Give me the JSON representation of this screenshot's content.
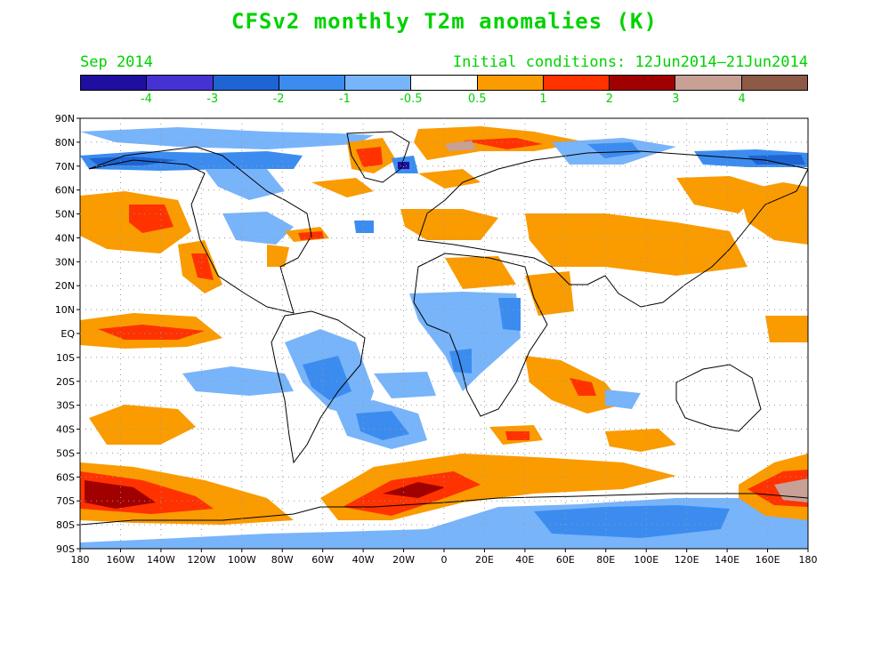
{
  "header": {
    "title": "CFSv2 monthly T2m anomalies (K)",
    "valid_month": "Sep 2014",
    "initial_conditions": "Initial conditions: 12Jun2014–21Jun2014"
  },
  "legend": {
    "colors": [
      "#1e0fa0",
      "#4632d2",
      "#1e64d2",
      "#3c8cf0",
      "#78b4fa",
      "#ffffff",
      "#fa9b00",
      "#ff3200",
      "#a00000",
      "#c8a096",
      "#8c5a46"
    ],
    "labels": [
      "-4",
      "-3",
      "-2",
      "-1",
      "-0.5",
      "0.5",
      "1",
      "2",
      "3",
      "4"
    ]
  },
  "map": {
    "lat_labels": [
      "90N",
      "80N",
      "70N",
      "60N",
      "50N",
      "40N",
      "30N",
      "20N",
      "10N",
      "EQ",
      "10S",
      "20S",
      "30S",
      "40S",
      "50S",
      "60S",
      "70S",
      "80S",
      "90S"
    ],
    "lon_labels": [
      "180",
      "160W",
      "140W",
      "120W",
      "100W",
      "80W",
      "60W",
      "40W",
      "20W",
      "0",
      "20E",
      "40E",
      "60E",
      "80E",
      "100E",
      "120E",
      "140E",
      "160E",
      "180"
    ],
    "colors": {
      "coastline": "#000000",
      "grid": "#9a9a9a"
    }
  }
}
